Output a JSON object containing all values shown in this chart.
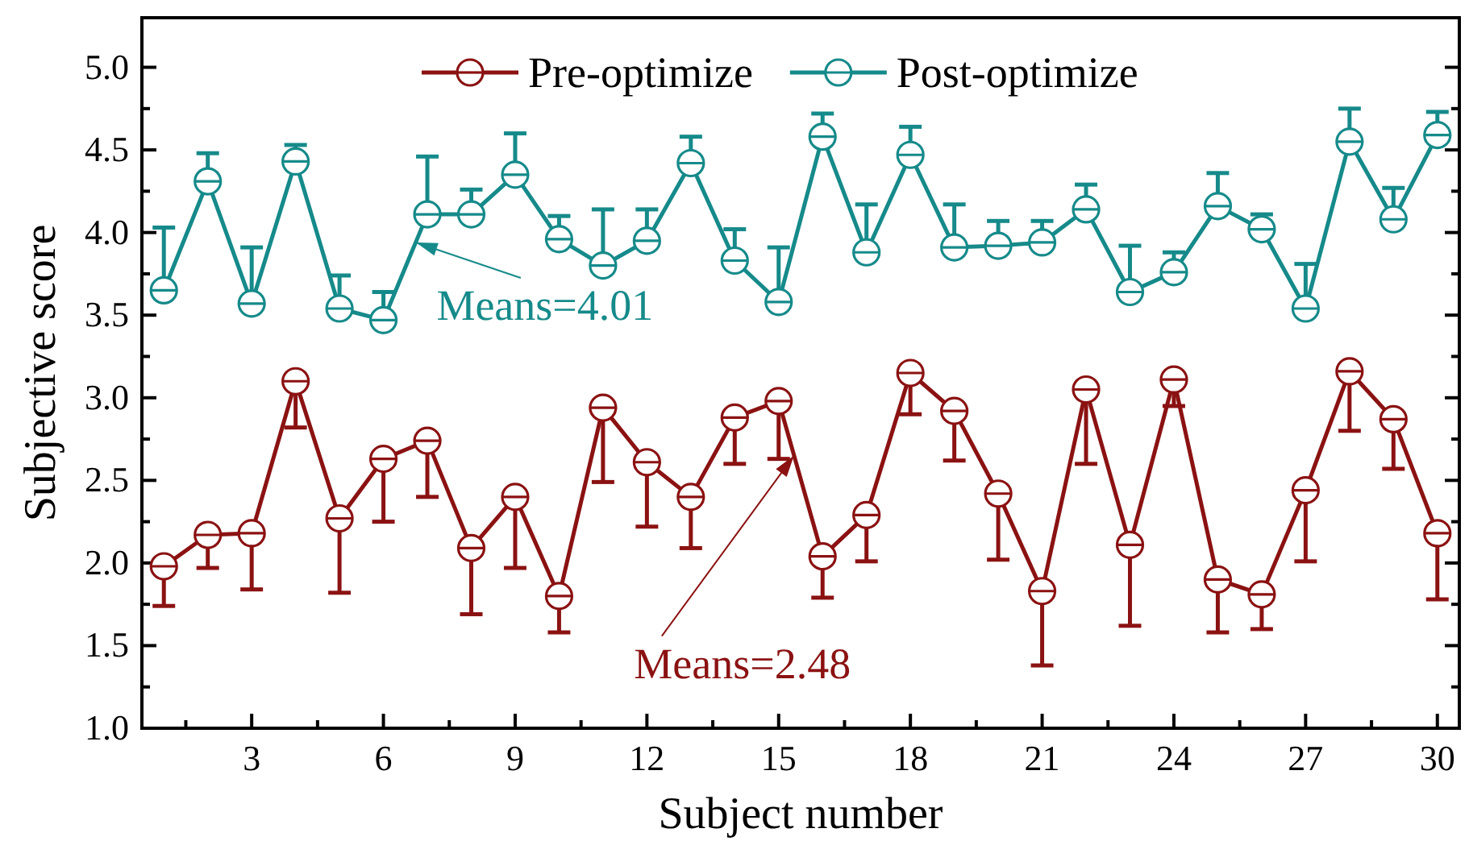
{
  "chart_data": {
    "type": "line",
    "xlabel": "Subject number",
    "ylabel": "Subjective score",
    "x": [
      1,
      2,
      3,
      4,
      5,
      6,
      7,
      8,
      9,
      10,
      11,
      12,
      13,
      14,
      15,
      16,
      17,
      18,
      19,
      20,
      21,
      22,
      23,
      24,
      25,
      26,
      27,
      28,
      29,
      30
    ],
    "xlim": [
      0.5,
      30.5
    ],
    "xticks": [
      {
        "value": 1.5,
        "label": null
      },
      3,
      {
        "value": 4.5,
        "label": null
      },
      6,
      {
        "value": 7.5,
        "label": null
      },
      9,
      {
        "value": 10.5,
        "label": null
      },
      12,
      {
        "value": 13.5,
        "label": null
      },
      15,
      {
        "value": 16.5,
        "label": null
      },
      18,
      {
        "value": 19.5,
        "label": null
      },
      21,
      {
        "value": 22.5,
        "label": null
      },
      24,
      {
        "value": 25.5,
        "label": null
      },
      27,
      {
        "value": 28.5,
        "label": null
      },
      30
    ],
    "ylim": [
      1,
      5.3
    ],
    "yticks": [
      {
        "value": 1,
        "label": "1.0"
      },
      {
        "value": 1.25,
        "label": null
      },
      {
        "value": 1.5,
        "label": "1.5"
      },
      {
        "value": 1.75,
        "label": null
      },
      {
        "value": 2,
        "label": "2.0"
      },
      {
        "value": 2.25,
        "label": null
      },
      {
        "value": 2.5,
        "label": "2.5"
      },
      {
        "value": 2.75,
        "label": null
      },
      {
        "value": 3,
        "label": "3.0"
      },
      {
        "value": 3.25,
        "label": null
      },
      {
        "value": 3.5,
        "label": "3.5"
      },
      {
        "value": 3.75,
        "label": null
      },
      {
        "value": 4,
        "label": "4.0"
      },
      {
        "value": 4.25,
        "label": null
      },
      {
        "value": 4.5,
        "label": "4.5"
      },
      {
        "value": 4.75,
        "label": null
      },
      {
        "value": 5,
        "label": "5.0"
      }
    ],
    "marker": "circle",
    "line_style": "solid",
    "legend": "top",
    "grid": false,
    "series": [
      {
        "name": "Pre-optimize",
        "color": "#8b1212",
        "values": [
          1.98,
          2.17,
          2.18,
          3.1,
          2.27,
          2.63,
          2.74,
          2.09,
          2.4,
          1.8,
          2.94,
          2.61,
          2.4,
          2.88,
          2.98,
          2.04,
          2.29,
          3.15,
          2.92,
          2.42,
          1.83,
          3.05,
          2.11,
          3.11,
          1.9,
          1.81,
          2.44,
          3.16,
          2.87,
          2.18
        ],
        "errors": [
          [
            1.74,
            1.98
          ],
          [
            1.97,
            2.17
          ],
          [
            1.84,
            2.18
          ],
          [
            2.82,
            3.1
          ],
          [
            1.82,
            2.27
          ],
          [
            2.25,
            2.63
          ],
          [
            2.4,
            2.74
          ],
          [
            1.69,
            2.09
          ],
          [
            1.97,
            2.4
          ],
          [
            1.58,
            1.8
          ],
          [
            2.49,
            2.94
          ],
          [
            2.22,
            2.61
          ],
          [
            2.09,
            2.4
          ],
          [
            2.6,
            2.88
          ],
          [
            2.63,
            2.98
          ],
          [
            1.79,
            2.04
          ],
          [
            2.01,
            2.29
          ],
          [
            2.9,
            3.15
          ],
          [
            2.62,
            2.92
          ],
          [
            2.02,
            2.42
          ],
          [
            1.38,
            1.83
          ],
          [
            2.6,
            3.05
          ],
          [
            1.62,
            2.11
          ],
          [
            2.95,
            3.11
          ],
          [
            1.58,
            1.9
          ],
          [
            1.6,
            1.81
          ],
          [
            2.01,
            2.44
          ],
          [
            2.8,
            3.16
          ],
          [
            2.57,
            2.87
          ],
          [
            1.78,
            2.18
          ]
        ]
      },
      {
        "name": "Post-optimize",
        "color": "#168a8a",
        "values": [
          3.65,
          4.31,
          3.57,
          4.43,
          3.54,
          3.47,
          4.11,
          4.11,
          4.35,
          3.96,
          3.8,
          3.95,
          4.42,
          3.83,
          3.58,
          4.58,
          3.88,
          4.47,
          3.91,
          3.92,
          3.94,
          4.14,
          3.64,
          3.76,
          4.16,
          4.02,
          3.54,
          4.55,
          4.08,
          4.59
        ],
        "errors": [
          [
            3.65,
            4.03
          ],
          [
            4.31,
            4.48
          ],
          [
            3.57,
            3.91
          ],
          [
            4.43,
            4.53
          ],
          [
            3.54,
            3.74
          ],
          [
            3.47,
            3.64
          ],
          [
            4.11,
            4.46
          ],
          [
            4.11,
            4.26
          ],
          [
            4.35,
            4.6
          ],
          [
            3.96,
            4.1
          ],
          [
            3.8,
            4.14
          ],
          [
            3.95,
            4.14
          ],
          [
            4.42,
            4.58
          ],
          [
            3.83,
            4.02
          ],
          [
            3.58,
            3.91
          ],
          [
            4.58,
            4.72
          ],
          [
            3.88,
            4.17
          ],
          [
            4.47,
            4.64
          ],
          [
            3.91,
            4.17
          ],
          [
            3.92,
            4.07
          ],
          [
            3.94,
            4.07
          ],
          [
            4.14,
            4.29
          ],
          [
            3.64,
            3.92
          ],
          [
            3.76,
            3.88
          ],
          [
            4.16,
            4.36
          ],
          [
            4.02,
            4.11
          ],
          [
            3.54,
            3.81
          ],
          [
            4.55,
            4.75
          ],
          [
            4.08,
            4.27
          ],
          [
            4.59,
            4.73
          ]
        ]
      }
    ],
    "annotations": [
      {
        "text": "Means=4.01",
        "x": 6.74,
        "y": 3.94
      },
      {
        "text": "Means=2.48",
        "x": 15.35,
        "y": 2.65
      }
    ]
  }
}
